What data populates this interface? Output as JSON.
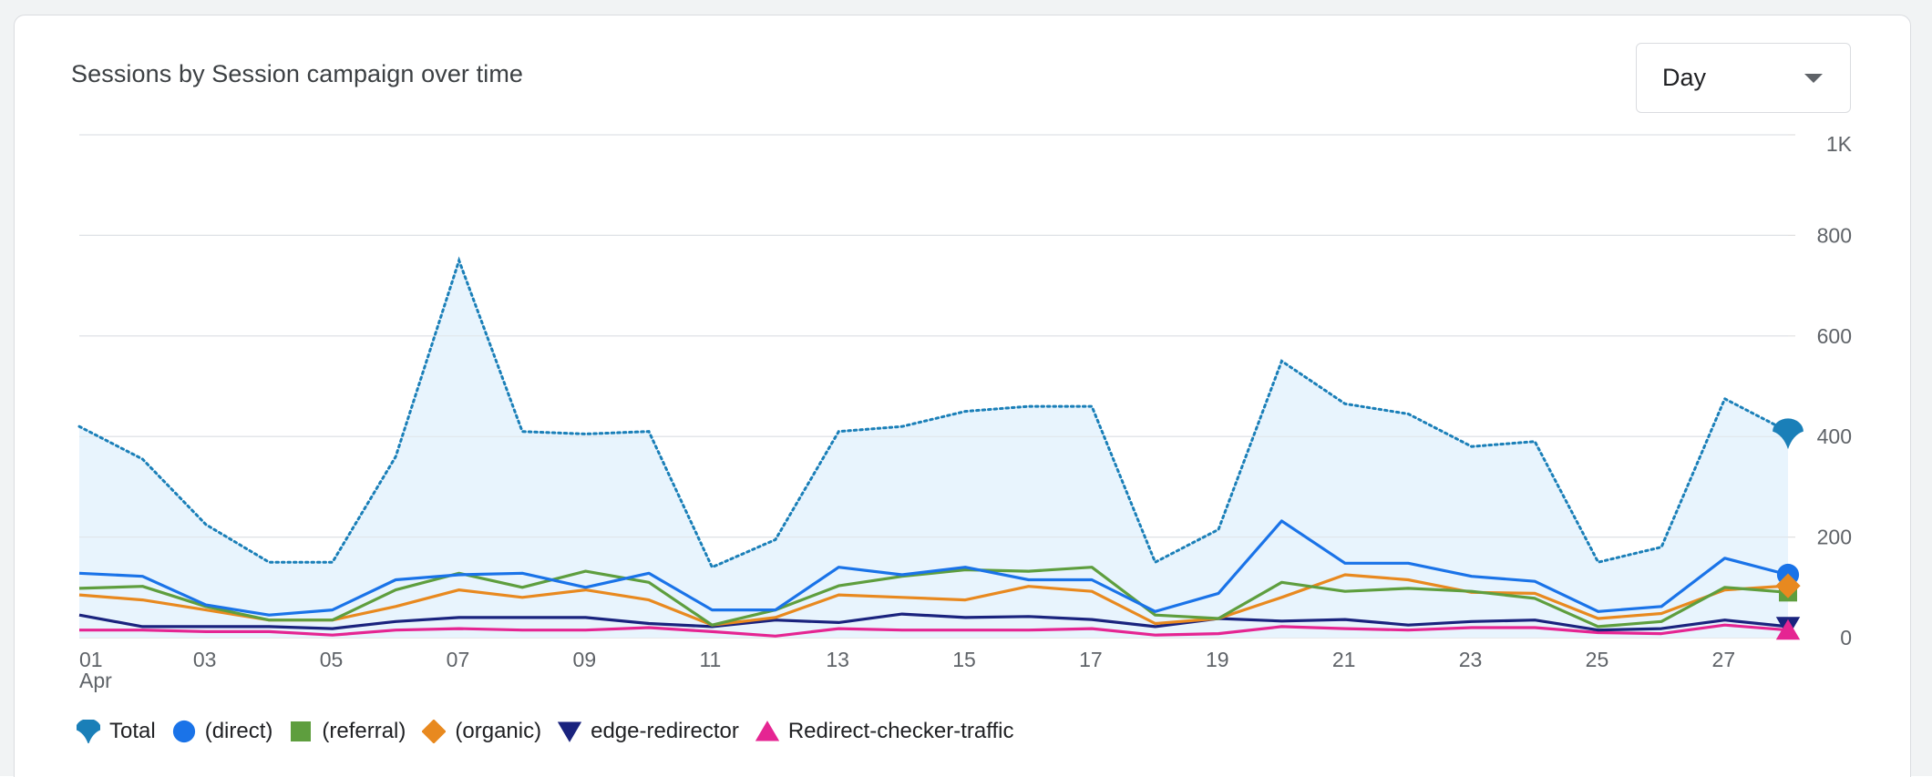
{
  "header": {
    "title": "Sessions by Session campaign over time"
  },
  "granularity": {
    "selected": "Day",
    "icon": "chevron-down-icon"
  },
  "colors": {
    "total": "#1a73e8",
    "total_dot": "#1a7fb8",
    "area_fill": "#e8f4fd",
    "direct": "#1a73e8",
    "referral": "#5e9e3e",
    "organic": "#e8891f",
    "edge_redirector": "#1a237e",
    "redirect_checker": "#e52592",
    "grid": "#e0e0e0",
    "axis_text": "#5f6368"
  },
  "chart_data": {
    "type": "line",
    "title": "Sessions by Session campaign over time",
    "x": [
      "01",
      "02",
      "03",
      "04",
      "05",
      "06",
      "07",
      "08",
      "09",
      "10",
      "11",
      "12",
      "13",
      "14",
      "15",
      "16",
      "17",
      "18",
      "19",
      "20",
      "21",
      "22",
      "23",
      "24",
      "25",
      "26",
      "27",
      "28"
    ],
    "x_tick_labels": [
      "01",
      "03",
      "05",
      "07",
      "09",
      "11",
      "13",
      "15",
      "17",
      "19",
      "21",
      "23",
      "25",
      "27"
    ],
    "x_sublabel": "Apr",
    "y_ticks": [
      0,
      200,
      400,
      600,
      800,
      1000
    ],
    "y_tick_labels": [
      "0",
      "200",
      "400",
      "600",
      "800",
      "1K"
    ],
    "ylim": [
      0,
      1000
    ],
    "y_axis_side": "right",
    "grid": true,
    "legend_position": "bottom-left",
    "series": [
      {
        "name": "Total",
        "key": "total",
        "style": "dotted-area",
        "marker": "pin",
        "values": [
          420,
          355,
          225,
          150,
          150,
          360,
          750,
          410,
          405,
          410,
          140,
          195,
          410,
          420,
          450,
          460,
          460,
          150,
          215,
          550,
          465,
          445,
          380,
          390,
          150,
          180,
          475,
          410
        ]
      },
      {
        "name": "(direct)",
        "key": "direct",
        "style": "solid",
        "marker": "circle",
        "values": [
          128,
          122,
          65,
          45,
          55,
          115,
          125,
          128,
          100,
          128,
          55,
          55,
          140,
          125,
          140,
          115,
          115,
          52,
          88,
          232,
          148,
          148,
          122,
          112,
          52,
          62,
          158,
          125
        ]
      },
      {
        "name": "(referral)",
        "key": "referral",
        "style": "solid",
        "marker": "square",
        "values": [
          98,
          102,
          62,
          35,
          35,
          95,
          128,
          100,
          132,
          110,
          25,
          55,
          103,
          122,
          135,
          132,
          140,
          45,
          38,
          110,
          92,
          98,
          92,
          78,
          22,
          32,
          100,
          90
        ]
      },
      {
        "name": "(organic)",
        "key": "organic",
        "style": "solid",
        "marker": "diamond",
        "values": [
          85,
          75,
          55,
          35,
          35,
          62,
          95,
          80,
          95,
          75,
          25,
          40,
          85,
          80,
          75,
          102,
          92,
          28,
          38,
          80,
          125,
          115,
          90,
          88,
          38,
          48,
          95,
          103
        ]
      },
      {
        "name": "edge-redirector",
        "key": "edge_redirector",
        "style": "solid",
        "marker": "triangle-down",
        "values": [
          45,
          22,
          22,
          22,
          18,
          32,
          40,
          40,
          40,
          28,
          22,
          35,
          30,
          47,
          40,
          42,
          36,
          22,
          38,
          33,
          36,
          25,
          32,
          35,
          15,
          18,
          35,
          22
        ]
      },
      {
        "name": "Redirect-checker-traffic",
        "key": "redirect_checker",
        "style": "solid",
        "marker": "triangle-up",
        "values": [
          15,
          15,
          12,
          12,
          5,
          15,
          18,
          15,
          15,
          20,
          12,
          3,
          18,
          15,
          15,
          15,
          18,
          5,
          8,
          22,
          18,
          15,
          20,
          20,
          10,
          8,
          25,
          15
        ]
      }
    ]
  }
}
